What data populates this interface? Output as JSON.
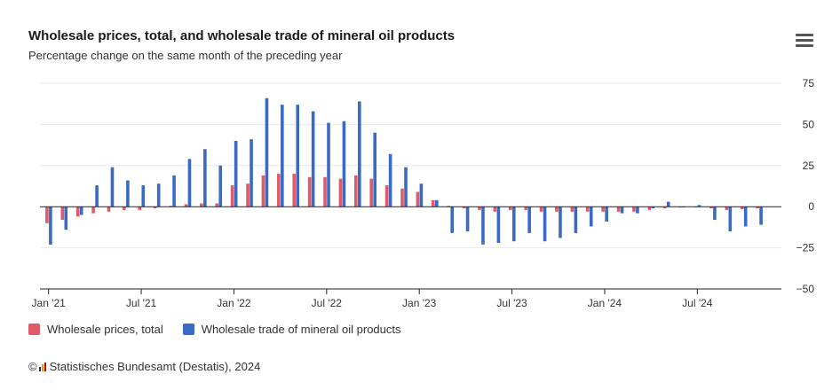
{
  "header": {
    "title": "Wholesale prices, total, and wholesale trade of mineral oil products",
    "subtitle": "Percentage change on the same month of the preceding year"
  },
  "menu_icon": "hamburger-menu-icon",
  "credits": {
    "copyright_symbol": "©",
    "text": "Statistisches Bundesamt (Destatis), 2024"
  },
  "colors": {
    "series1": "#e05a68",
    "series2": "#3a6ac4",
    "grid": "#e8e8e8",
    "zero": "#222222",
    "text": "#333333"
  },
  "chart_data": {
    "type": "bar",
    "title": "Wholesale prices, total, and wholesale trade of mineral oil products",
    "subtitle": "Percentage change on the same month of the preceding year",
    "ylim": [
      -50,
      75
    ],
    "yticks": [
      75,
      50,
      25,
      0,
      -25,
      -50
    ],
    "ytick_labels": [
      "75",
      "50",
      "25",
      "0",
      "−25",
      "−50"
    ],
    "grid": true,
    "y_axis_position": "right",
    "legend_position": "bottom-left",
    "categories": [
      "2021-01",
      "2021-02",
      "2021-03",
      "2021-04",
      "2021-05",
      "2021-06",
      "2021-07",
      "2021-08",
      "2021-09",
      "2021-10",
      "2021-11",
      "2021-12",
      "2022-01",
      "2022-02",
      "2022-03",
      "2022-04",
      "2022-05",
      "2022-06",
      "2022-07",
      "2022-08",
      "2022-09",
      "2022-10",
      "2022-11",
      "2022-12",
      "2023-01",
      "2023-02",
      "2023-03",
      "2023-04",
      "2023-05",
      "2023-06",
      "2023-07",
      "2023-08",
      "2023-09",
      "2023-10",
      "2023-11",
      "2023-12",
      "2024-01",
      "2024-02",
      "2024-03",
      "2024-04",
      "2024-05",
      "2024-06",
      "2024-07",
      "2024-08",
      "2024-09",
      "2024-10",
      "2024-11",
      "2024-12"
    ],
    "x_tick_labels": [
      {
        "index": 0,
        "label": "Jan '21"
      },
      {
        "index": 6,
        "label": "Jul '21"
      },
      {
        "index": 12,
        "label": "Jan '22"
      },
      {
        "index": 18,
        "label": "Jul '22"
      },
      {
        "index": 24,
        "label": "Jan '23"
      },
      {
        "index": 30,
        "label": "Jul '23"
      },
      {
        "index": 36,
        "label": "Jan '24"
      },
      {
        "index": 42,
        "label": "Jul '24"
      }
    ],
    "series": [
      {
        "name": "Wholesale prices, total",
        "values": [
          -10,
          -8,
          -6,
          -4,
          -3,
          -2,
          -2,
          -1,
          0.5,
          1.5,
          2,
          2,
          13,
          14,
          19,
          20,
          20,
          18,
          18,
          17,
          19,
          17,
          13,
          11,
          9,
          4,
          0.5,
          -1,
          -2,
          -3,
          -2,
          -2,
          -3,
          -3,
          -3,
          -3,
          -3,
          -3,
          -3,
          -2,
          -1,
          -0.5,
          0,
          -1,
          -2,
          -1.5,
          -1,
          null
        ]
      },
      {
        "name": "Wholesale trade of mineral oil products",
        "values": [
          -23,
          -14,
          -5,
          13,
          24,
          16,
          13,
          14,
          19,
          29,
          35,
          25,
          40,
          41,
          66,
          62,
          62,
          58,
          51,
          52,
          64,
          45,
          32,
          24,
          14,
          4,
          -16,
          -15,
          -23,
          -22,
          -21,
          -16,
          -21,
          -19,
          -16,
          -12,
          -9,
          -4,
          -4,
          -1,
          3,
          0,
          1,
          -8,
          -15,
          -12,
          -11,
          null
        ]
      }
    ]
  }
}
